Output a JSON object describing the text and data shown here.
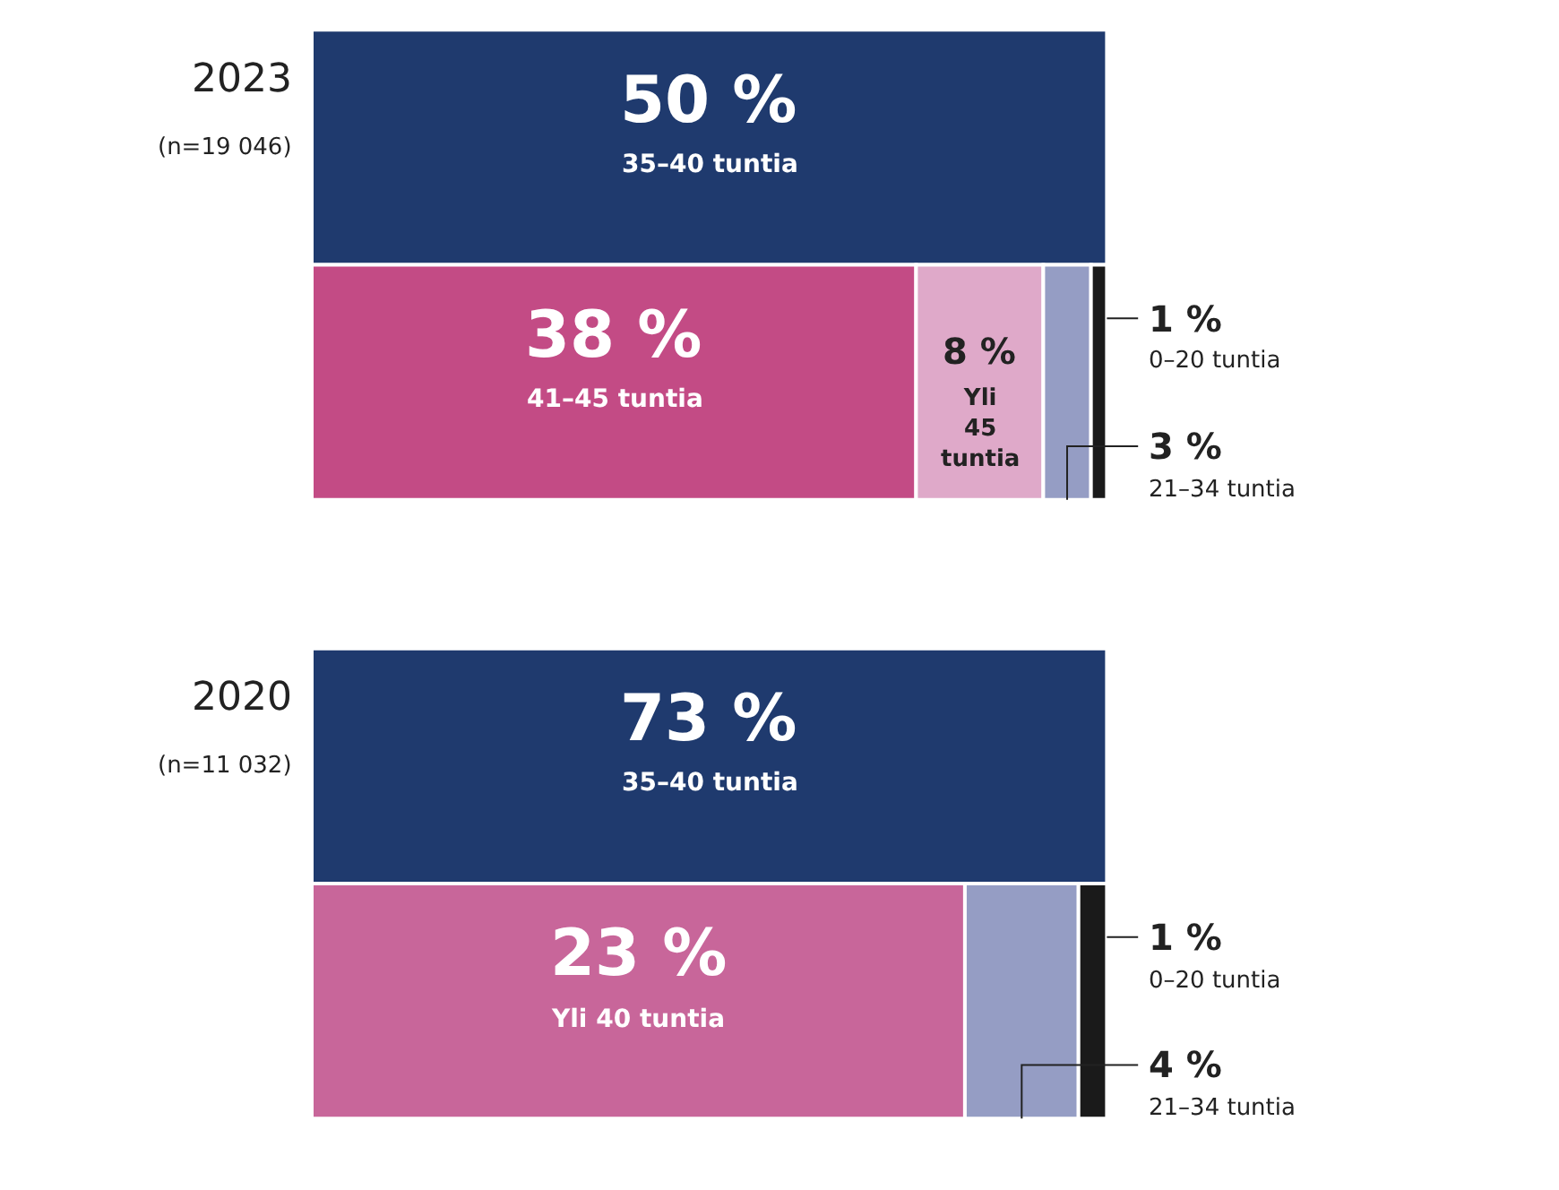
{
  "chart_data": [
    {
      "type": "other",
      "title": "2023",
      "subtitle": "(n=19 046)",
      "categories": [
        "35–40 tuntia",
        "41–45 tuntia",
        "Yli 45 tuntia",
        "21–34 tuntia",
        "0–20 tuntia"
      ],
      "values": [
        50,
        38,
        8,
        3,
        1
      ],
      "value_labels": [
        "50 %",
        "38 %",
        "8 %",
        "3 %",
        "1 %"
      ],
      "colors": [
        "#1f3a6e",
        "#c34b85",
        "#dfa9c9",
        "#959dc4",
        "#1a1a1a"
      ]
    },
    {
      "type": "other",
      "title": "2020",
      "subtitle": "(n=11 032)",
      "categories": [
        "35–40 tuntia",
        "Yli 40 tuntia",
        "21–34 tuntia",
        "0–20 tuntia"
      ],
      "values": [
        73,
        23,
        4,
        1
      ],
      "value_labels": [
        "73 %",
        "23 %",
        "4 %",
        "1 %"
      ],
      "colors": [
        "#1f3a6e",
        "#c8669a",
        "#959dc4",
        "#1a1a1a"
      ]
    }
  ]
}
